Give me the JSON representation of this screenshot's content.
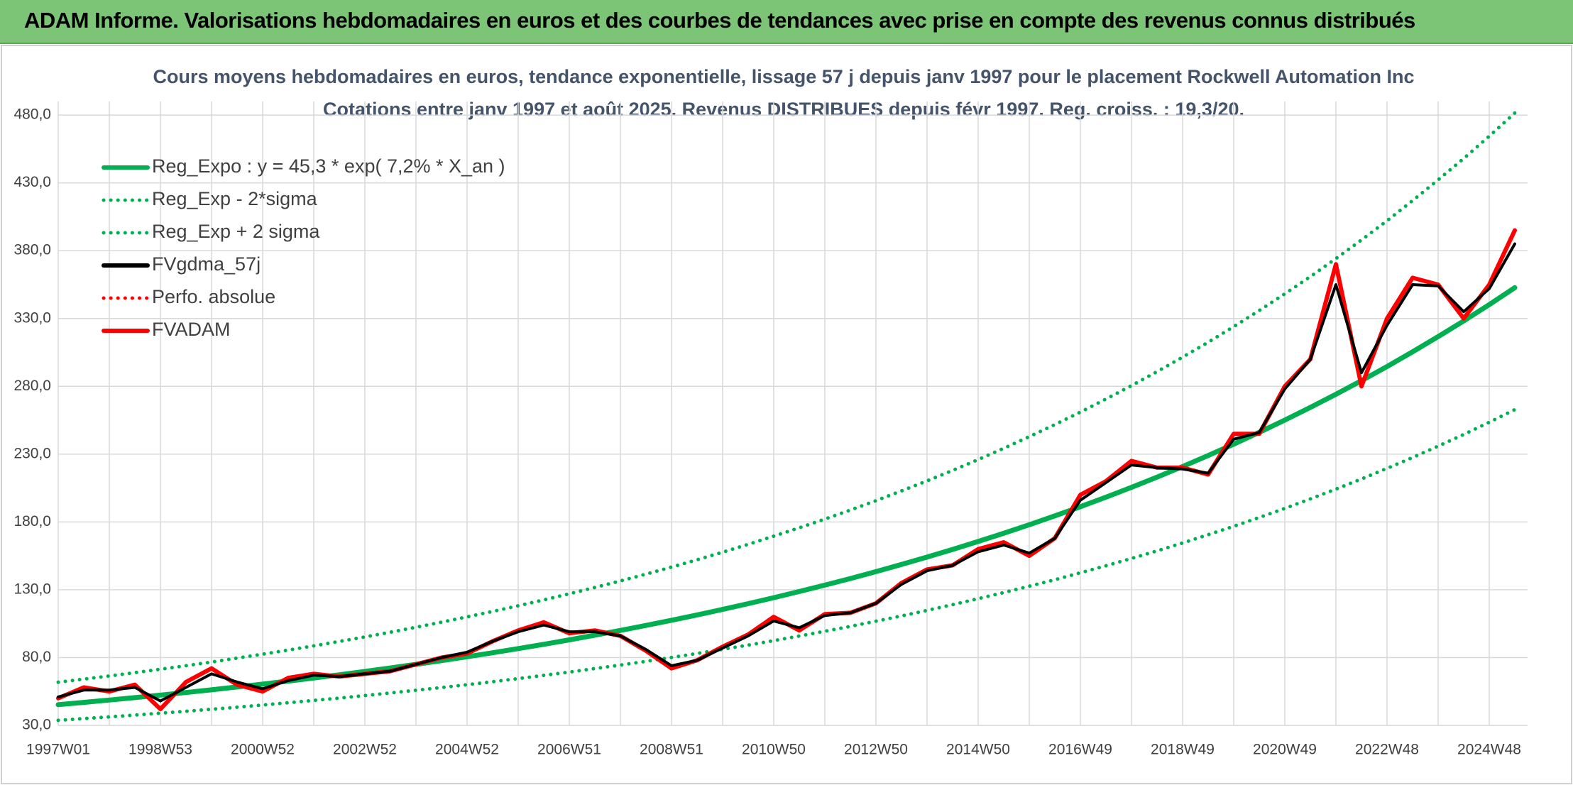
{
  "header": {
    "title": "ADAM Informe. Valorisations hebdomadaires en euros et des courbes de tendances avec prise en compte des revenus connus distribués"
  },
  "chart_data": {
    "type": "line",
    "title": "Cours moyens hebdomadaires en euros, tendance exponentielle, lissage 57 j depuis janv 1997 pour le placement Rockwell Automation Inc",
    "subtitle": "Cotations entre janv 1997 et août 2025. Revenus DISTRIBUES depuis févr 1997. Reg. croiss. : 19,3/20.",
    "categories": [
      "1997W01",
      null,
      null,
      null,
      "1998W53",
      null,
      null,
      null,
      "2000W52",
      null,
      null,
      null,
      "2002W52",
      null,
      null,
      null,
      "2004W52",
      null,
      null,
      null,
      "2006W51",
      null,
      null,
      null,
      "2008W51",
      null,
      null,
      null,
      "2010W50",
      null,
      null,
      null,
      "2012W50",
      null,
      null,
      null,
      "2014W50",
      null,
      null,
      null,
      "2016W49",
      null,
      null,
      null,
      "2018W49",
      null,
      null,
      null,
      "2020W49",
      null,
      null,
      null,
      "2022W48",
      null,
      null,
      null,
      "2024W48",
      null
    ],
    "ylim": [
      30,
      490
    ],
    "yticks": [
      {
        "value": 30,
        "label": "30,0"
      },
      {
        "value": 80,
        "label": "80,0"
      },
      {
        "value": 130,
        "label": "130,0"
      },
      {
        "value": 180,
        "label": "180,0"
      },
      {
        "value": 230,
        "label": "230,0"
      },
      {
        "value": 280,
        "label": "280,0"
      },
      {
        "value": 330,
        "label": "330,0"
      },
      {
        "value": 380,
        "label": "380,0"
      },
      {
        "value": 430,
        "label": "430,0"
      },
      {
        "value": 480,
        "label": "480,0"
      }
    ],
    "grid": true,
    "legend": "top-left",
    "series": [
      {
        "name": "Reg_Expo : y = 45,3 * exp( 7,2% *  X_an )",
        "color": "#00b050",
        "dash": false,
        "values": [
          45.3,
          46.96,
          48.68,
          50.47,
          52.32,
          54.24,
          56.22,
          58.29,
          60.42,
          62.64,
          64.93,
          67.31,
          69.78,
          72.34,
          74.99,
          77.74,
          80.59,
          83.54,
          86.61,
          89.78,
          93.07,
          96.49,
          100.02,
          103.69,
          107.49,
          111.43,
          115.52,
          119.75,
          124.14,
          128.69,
          133.41,
          138.3,
          143.37,
          148.63,
          154.08,
          159.73,
          165.58,
          171.65,
          177.95,
          184.47,
          191.24,
          198.25,
          205.52,
          213.05,
          220.86,
          228.96,
          237.36,
          246.06,
          255.08,
          264.43,
          274.13,
          284.18,
          294.6,
          305.4,
          316.6,
          328.21,
          340.24,
          352.72
        ]
      },
      {
        "name": "Reg_Exp - 2*sigma",
        "color": "#00b050",
        "dash": true,
        "values": [
          33.7,
          35.0,
          36.3,
          37.6,
          39.0,
          40.4,
          41.9,
          43.4,
          45.0,
          46.7,
          48.4,
          50.1,
          52.0,
          53.9,
          55.9,
          57.9,
          60.0,
          62.2,
          64.5,
          66.9,
          69.3,
          71.9,
          74.5,
          77.2,
          80.1,
          83.0,
          86.1,
          89.2,
          92.5,
          95.9,
          99.4,
          103.0,
          106.8,
          110.7,
          114.8,
          119.0,
          123.4,
          127.9,
          132.6,
          137.4,
          142.5,
          147.7,
          153.1,
          158.7,
          164.5,
          170.6,
          176.8,
          183.3,
          190.0,
          197.0,
          204.2,
          211.7,
          219.5,
          227.5,
          235.9,
          244.5,
          253.5,
          262.8
        ]
      },
      {
        "name": "Reg_Exp + 2 sigma",
        "color": "#00b050",
        "dash": true,
        "values": [
          61.8,
          64.1,
          66.4,
          68.9,
          71.4,
          74.0,
          76.7,
          79.6,
          82.5,
          85.5,
          88.6,
          91.9,
          95.2,
          98.7,
          102.4,
          106.1,
          110.0,
          114.0,
          118.2,
          122.5,
          127.0,
          131.7,
          136.5,
          141.5,
          146.7,
          152.1,
          157.7,
          163.5,
          169.5,
          175.7,
          182.1,
          188.8,
          195.7,
          202.9,
          210.3,
          218.0,
          226.0,
          234.3,
          242.9,
          251.8,
          261.0,
          270.6,
          280.5,
          290.8,
          301.5,
          312.5,
          324.0,
          335.9,
          348.2,
          360.9,
          374.2,
          387.9,
          402.1,
          416.9,
          432.2,
          448.0,
          464.4,
          481.5
        ]
      },
      {
        "name": "FVgdma_57j",
        "color": "#000000",
        "dash": false,
        "values": [
          51,
          56,
          56,
          58,
          48,
          58,
          68,
          62,
          57,
          63,
          67,
          66,
          68,
          70,
          75,
          80,
          84,
          92,
          99,
          104,
          99,
          99,
          96,
          86,
          74,
          78,
          87,
          96,
          107,
          102,
          111,
          113,
          120,
          134,
          144,
          148,
          158,
          163,
          157,
          168,
          196,
          209,
          222,
          220,
          219,
          216,
          241,
          246,
          278,
          300,
          355,
          290,
          325,
          355,
          354,
          335,
          352,
          385
        ]
      },
      {
        "name": "Perfo. absolue",
        "color": "#ff0000",
        "dash": true,
        "values": [
          50,
          58,
          55,
          60,
          42,
          62,
          72,
          60,
          55,
          65,
          68,
          66,
          68,
          70,
          75,
          80,
          83,
          92,
          100,
          106,
          98,
          100,
          96,
          85,
          72,
          78,
          88,
          97,
          110,
          100,
          112,
          113,
          120,
          135,
          145,
          148,
          160,
          165,
          155,
          168,
          200,
          210,
          225,
          220,
          220,
          215,
          245,
          245,
          280,
          300,
          370,
          280,
          330,
          360,
          355,
          330,
          355,
          395
        ]
      },
      {
        "name": "FVADAM",
        "color": "#ff0000",
        "dash": false,
        "values": [
          50,
          58,
          55,
          60,
          42,
          62,
          72,
          60,
          55,
          65,
          68,
          66,
          68,
          70,
          75,
          80,
          83,
          92,
          100,
          106,
          98,
          100,
          96,
          85,
          72,
          78,
          88,
          97,
          110,
          100,
          112,
          113,
          120,
          135,
          145,
          148,
          160,
          165,
          155,
          168,
          200,
          210,
          225,
          220,
          220,
          215,
          245,
          245,
          280,
          300,
          370,
          280,
          330,
          360,
          355,
          330,
          355,
          395
        ]
      }
    ]
  }
}
